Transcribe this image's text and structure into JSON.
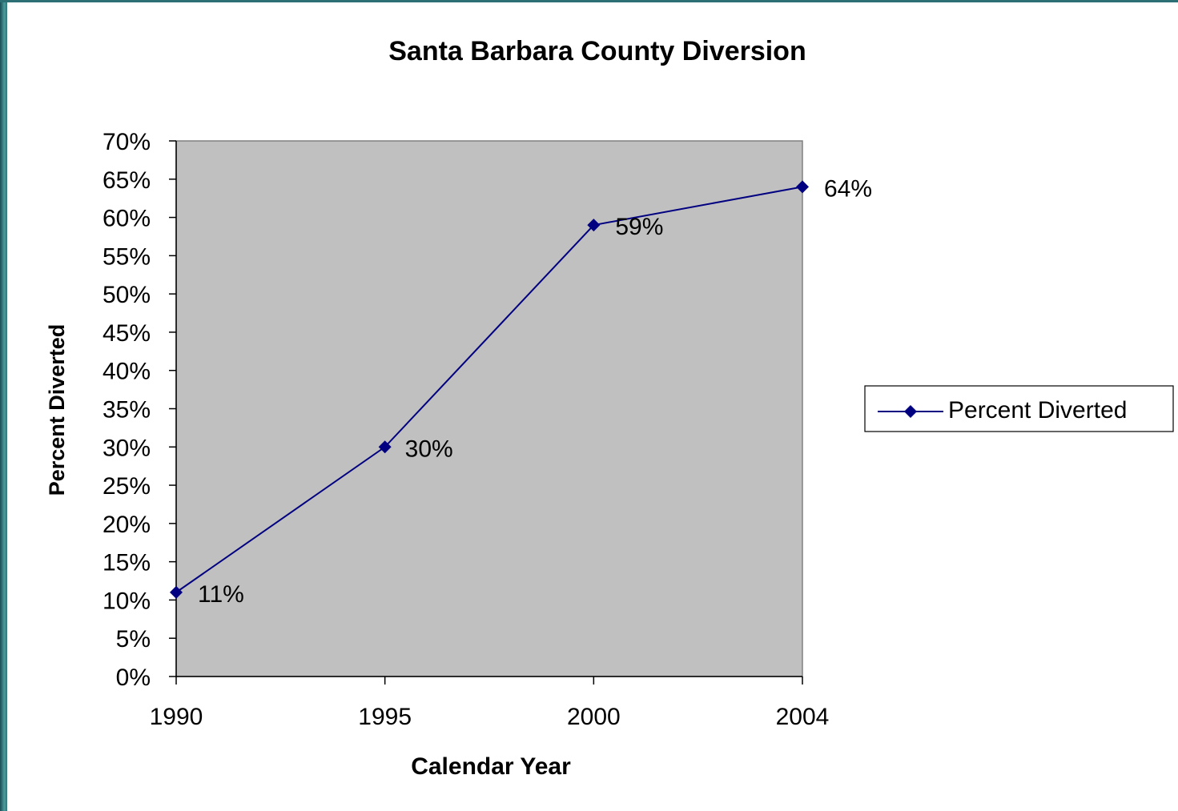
{
  "colors": {
    "accent_teal": "#2c7378",
    "plot_background": "#c0c0c0",
    "series_line": "#000080",
    "marker": "#000080",
    "axis": "#000000"
  },
  "chart_data": {
    "type": "line",
    "title": "Santa Barbara County Diversion",
    "xlabel": "Calendar Year",
    "ylabel": "Percent Diverted",
    "categories": [
      "1990",
      "1995",
      "2000",
      "2004"
    ],
    "series": [
      {
        "name": "Percent Diverted",
        "values": [
          0.11,
          0.3,
          0.59,
          0.64
        ],
        "data_labels": [
          "11%",
          "30%",
          "59%",
          "64%"
        ],
        "marker": "diamond"
      }
    ],
    "ylim": [
      0,
      0.7
    ],
    "ytick_labels": [
      "0%",
      "5%",
      "10%",
      "15%",
      "20%",
      "25%",
      "30%",
      "35%",
      "40%",
      "45%",
      "50%",
      "55%",
      "60%",
      "65%",
      "70%"
    ],
    "grid": false,
    "legend_position": "right"
  }
}
